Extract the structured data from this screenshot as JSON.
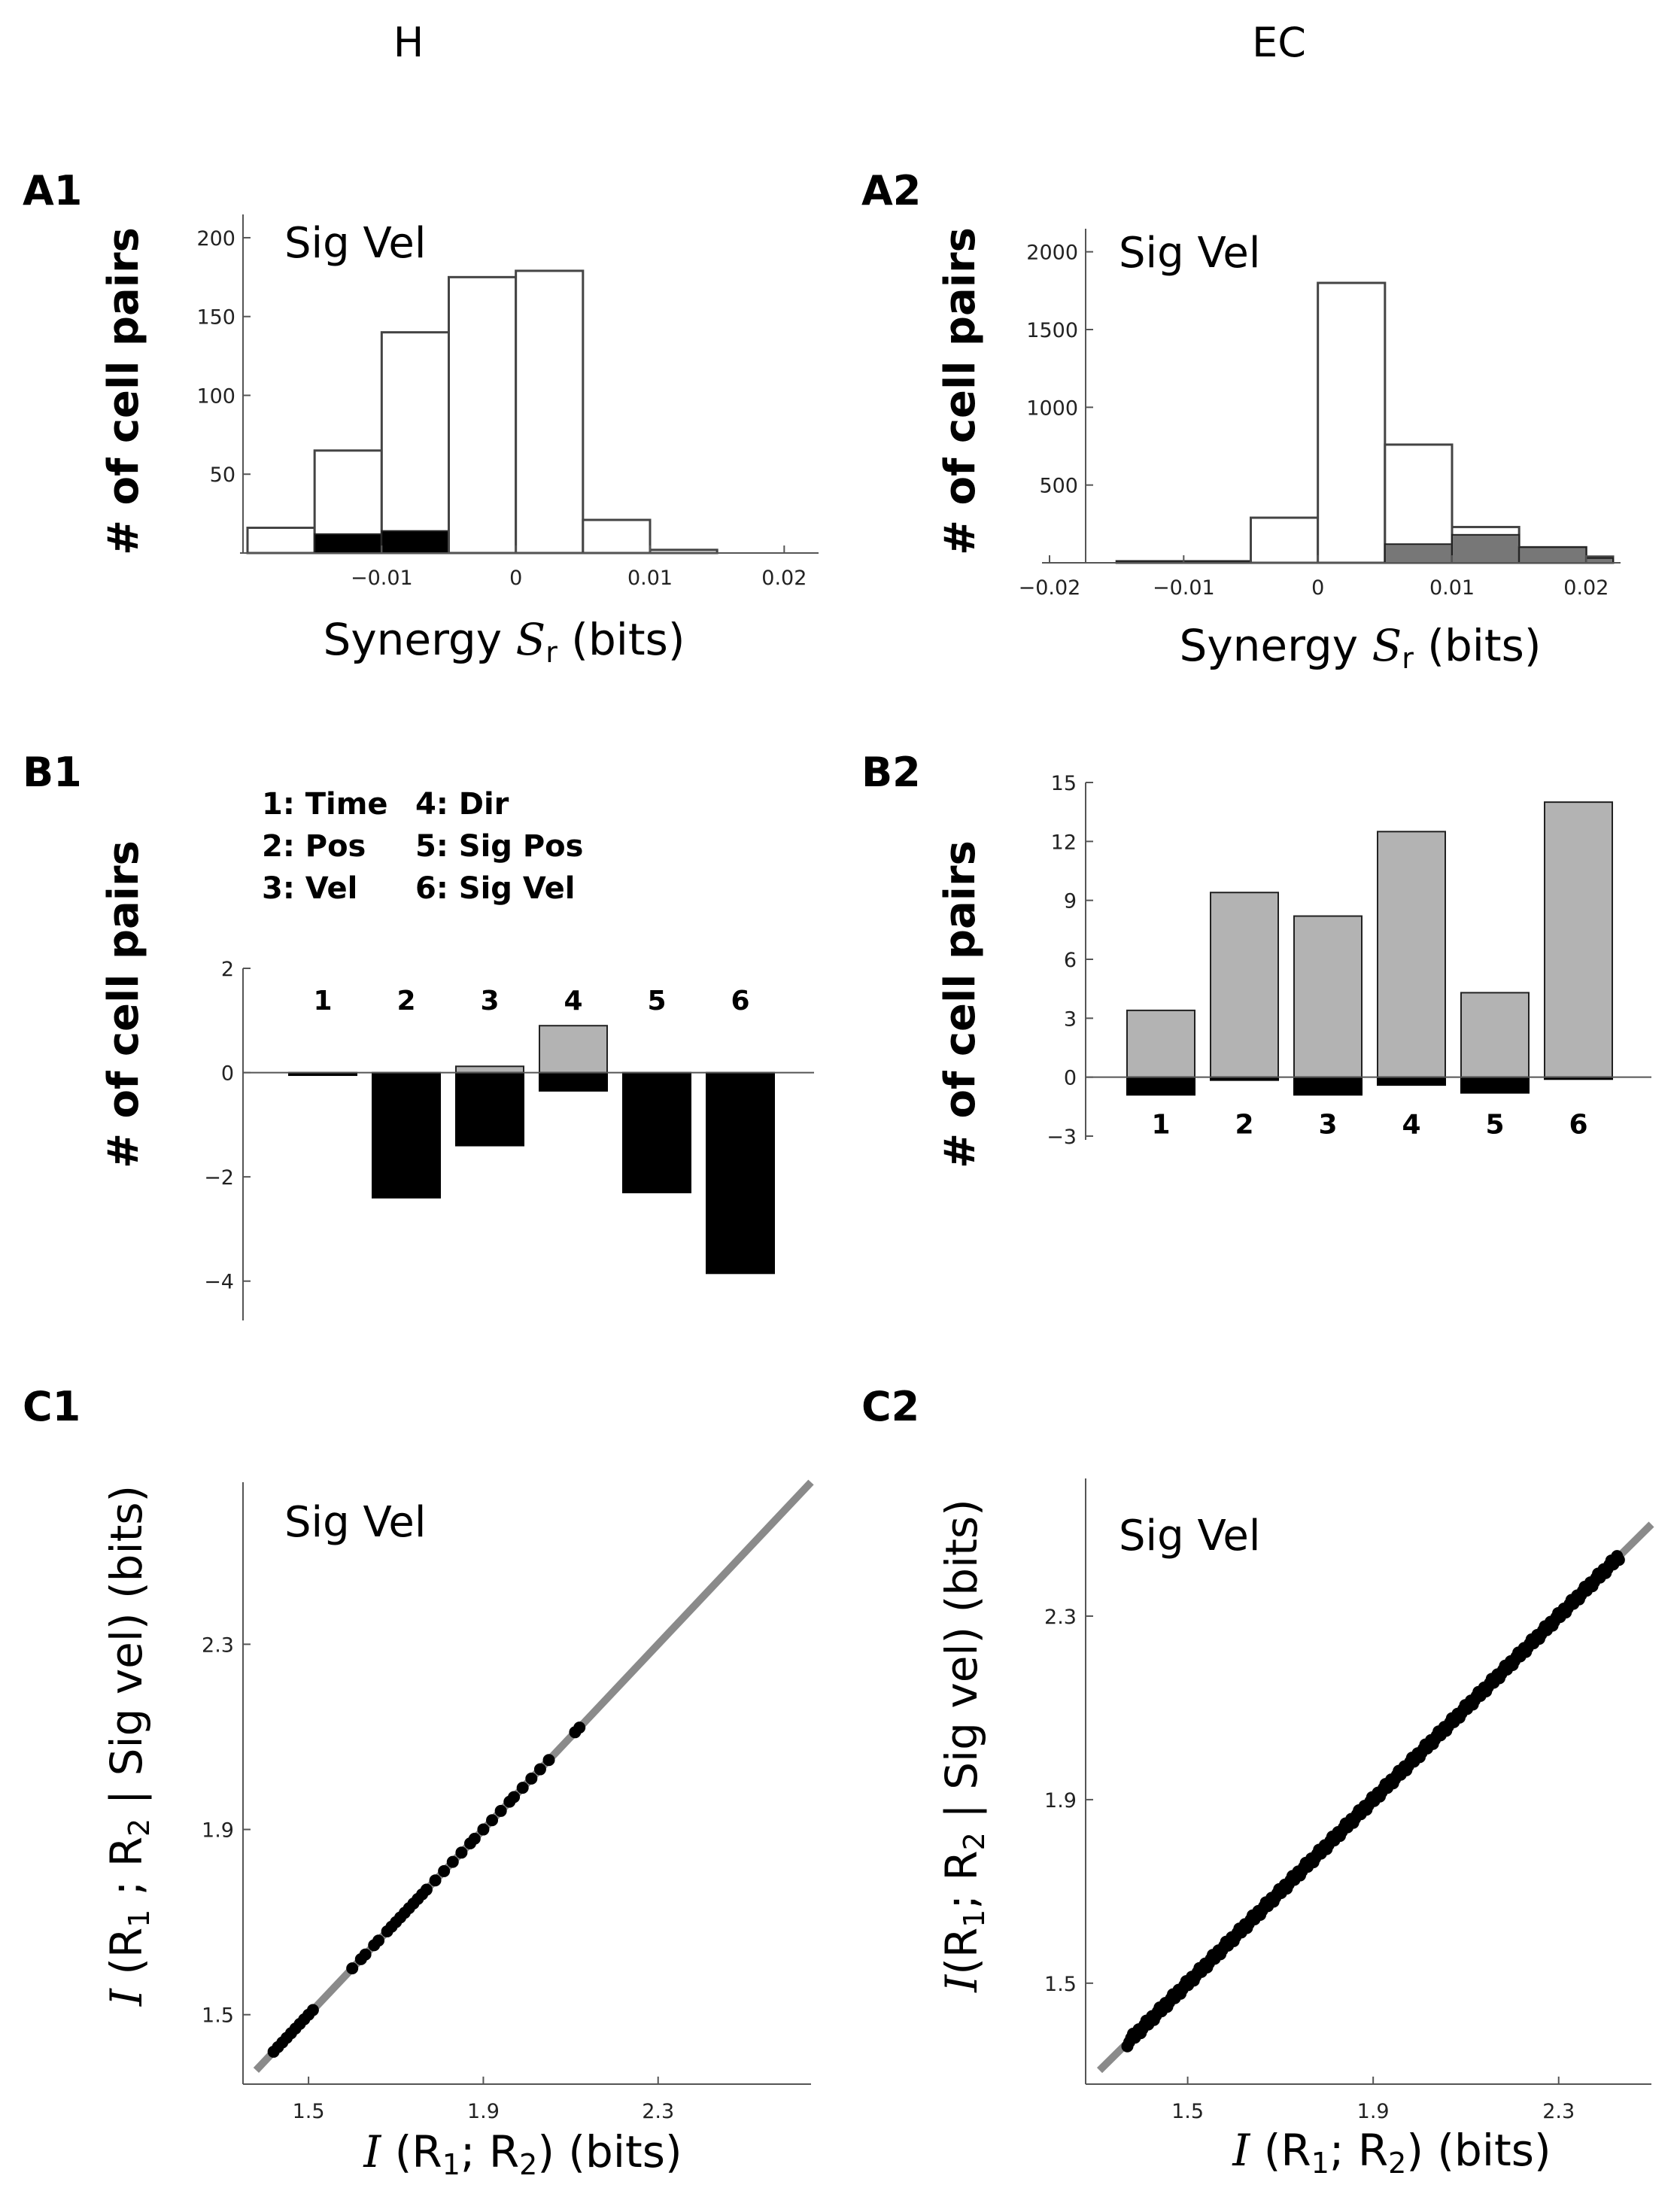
{
  "columns": {
    "left": "H",
    "right": "EC"
  },
  "panels": {
    "A1": "A1",
    "A2": "A2",
    "B1": "B1",
    "B2": "B2",
    "C1": "C1",
    "C2": "C2"
  },
  "chart_data": [
    {
      "id": "A1",
      "type": "bar",
      "title": "Sig Vel",
      "xlabel": "Synergy S_r (bits)",
      "xlabel_parts": {
        "a": "Synergy ",
        "b": "S",
        "c": "r",
        "d": " (bits)"
      },
      "ylabel": "# of cell pairs",
      "xlim": [
        -0.02,
        0.022
      ],
      "ylim": [
        0,
        210
      ],
      "xticks": [
        -0.01,
        0,
        0.01,
        0.02
      ],
      "xtick_labels": [
        "−0.01",
        "0",
        "0.01",
        "0.02"
      ],
      "yticks": [
        50,
        100,
        150,
        200
      ],
      "ytick_labels": [
        "50",
        "100",
        "150",
        "200"
      ],
      "bin_edges": [
        -0.02,
        -0.015,
        -0.01,
        -0.005,
        0,
        0.005,
        0.01,
        0.015
      ],
      "series": [
        {
          "name": "all pairs",
          "values": [
            16,
            65,
            140,
            175,
            179,
            21,
            2
          ]
        },
        {
          "name": "significant pairs",
          "values": [
            0,
            12,
            14,
            0,
            0,
            0,
            0
          ]
        }
      ]
    },
    {
      "id": "A2",
      "type": "bar",
      "title": "Sig Vel",
      "xlabel": "Synergy S_r (bits)",
      "xlabel_parts": {
        "a": "Synergy ",
        "b": "S",
        "c": "r",
        "d": " (bits)"
      },
      "ylabel": "# of cell pairs",
      "xlim": [
        -0.02,
        0.022
      ],
      "ylim": [
        0,
        2100
      ],
      "xticks": [
        -0.02,
        -0.01,
        0,
        0.01,
        0.02
      ],
      "xtick_labels": [
        "−0.02",
        "−0.01",
        "0",
        "0.01",
        "0.02"
      ],
      "yticks": [
        500,
        1000,
        1500,
        2000
      ],
      "ytick_labels": [
        "500",
        "1000",
        "1500",
        "2000"
      ],
      "bin_edges": [
        -0.015,
        -0.01,
        -0.005,
        0,
        0.005,
        0.01,
        0.015,
        0.02,
        0.022
      ],
      "series": [
        {
          "name": "all pairs",
          "values": [
            10,
            10,
            290,
            1800,
            760,
            230,
            100,
            40
          ]
        },
        {
          "name": "significant pairs",
          "values": [
            10,
            10,
            0,
            0,
            120,
            180,
            100,
            30
          ]
        }
      ]
    },
    {
      "id": "B1",
      "type": "bar",
      "ylabel": "# of cell pairs",
      "legend": [
        "1: Time",
        "2: Pos",
        "3: Vel",
        "4: Dir",
        "5: Sig Pos",
        "6: Sig Vel"
      ],
      "categories": [
        "1",
        "2",
        "3",
        "4",
        "5",
        "6"
      ],
      "ylim": [
        -5,
        2
      ],
      "yticks": [
        -4,
        -2,
        0,
        2
      ],
      "ytick_labels": [
        "−4",
        "−2",
        "0",
        "2"
      ],
      "series": [
        {
          "name": "positive",
          "values": [
            0,
            0,
            0.12,
            0.9,
            0,
            0
          ]
        },
        {
          "name": "negative",
          "values": [
            -0.05,
            -2.4,
            -1.4,
            -0.35,
            -2.3,
            -3.85
          ]
        }
      ]
    },
    {
      "id": "B2",
      "type": "bar",
      "ylabel": "# of cell pairs",
      "categories": [
        "1",
        "2",
        "3",
        "4",
        "5",
        "6"
      ],
      "ylim": [
        -3,
        15
      ],
      "yticks": [
        -3,
        0,
        3,
        6,
        9,
        12,
        15
      ],
      "ytick_labels": [
        "−3",
        "0",
        "3",
        "6",
        "9",
        "12",
        "15"
      ],
      "series": [
        {
          "name": "positive",
          "values": [
            3.4,
            9.4,
            8.2,
            12.5,
            4.3,
            14
          ]
        },
        {
          "name": "negative",
          "values": [
            -0.9,
            -0.15,
            -0.9,
            -0.4,
            -0.8,
            -0.1
          ]
        }
      ]
    },
    {
      "id": "C1",
      "type": "scatter",
      "title": "Sig Vel",
      "xlabel_parts": {
        "a": "I",
        "b": " (R",
        "c": "1",
        "d": "; R",
        "e": "2",
        "f": ") (bits)"
      },
      "ylabel_parts": {
        "a": "I",
        "b": " (R",
        "c": "1",
        "d": " ; R",
        "e": "2",
        "f": " | Sig vel) (bits)"
      },
      "xlim": [
        1.35,
        2.65
      ],
      "ylim": [
        1.35,
        2.65
      ],
      "xticks": [
        1.5,
        1.9,
        2.3
      ],
      "xtick_labels": [
        "1.5",
        "1.9",
        "2.3"
      ],
      "yticks": [
        1.5,
        1.9,
        2.3
      ],
      "ytick_labels": [
        "1.5",
        "1.9",
        "2.3"
      ],
      "diagonal": true,
      "points": [
        [
          1.42,
          1.42
        ],
        [
          1.43,
          1.43
        ],
        [
          1.44,
          1.44
        ],
        [
          1.45,
          1.45
        ],
        [
          1.46,
          1.46
        ],
        [
          1.47,
          1.47
        ],
        [
          1.48,
          1.48
        ],
        [
          1.49,
          1.49
        ],
        [
          1.5,
          1.5
        ],
        [
          1.51,
          1.51
        ],
        [
          1.6,
          1.6
        ],
        [
          1.62,
          1.62
        ],
        [
          1.63,
          1.63
        ],
        [
          1.65,
          1.65
        ],
        [
          1.66,
          1.66
        ],
        [
          1.68,
          1.68
        ],
        [
          1.69,
          1.69
        ],
        [
          1.7,
          1.7
        ],
        [
          1.71,
          1.71
        ],
        [
          1.72,
          1.72
        ],
        [
          1.73,
          1.73
        ],
        [
          1.74,
          1.74
        ],
        [
          1.75,
          1.75
        ],
        [
          1.76,
          1.76
        ],
        [
          1.77,
          1.77
        ],
        [
          1.79,
          1.79
        ],
        [
          1.81,
          1.81
        ],
        [
          1.83,
          1.83
        ],
        [
          1.85,
          1.85
        ],
        [
          1.87,
          1.87
        ],
        [
          1.88,
          1.88
        ],
        [
          1.9,
          1.9
        ],
        [
          1.92,
          1.92
        ],
        [
          1.94,
          1.94
        ],
        [
          1.96,
          1.96
        ],
        [
          1.97,
          1.97
        ],
        [
          1.99,
          1.99
        ],
        [
          2.01,
          2.01
        ],
        [
          2.03,
          2.03
        ],
        [
          2.05,
          2.05
        ],
        [
          2.11,
          2.11
        ],
        [
          2.12,
          2.12
        ]
      ]
    },
    {
      "id": "C2",
      "type": "scatter",
      "title": "Sig Vel",
      "xlabel_parts": {
        "a": "I",
        "b": " (R",
        "c": "1",
        "d": "; R",
        "e": "2",
        "f": ") (bits)"
      },
      "ylabel_parts": {
        "a": "I",
        "b": "(R",
        "c": "1",
        "d": "; R",
        "e": "2",
        "f": " | Sig vel) (bits)"
      },
      "xlim": [
        1.28,
        2.5
      ],
      "ylim": [
        1.28,
        2.6
      ],
      "xticks": [
        1.5,
        1.9,
        2.3
      ],
      "xtick_labels": [
        "1.5",
        "1.9",
        "2.3"
      ],
      "yticks": [
        1.5,
        1.9,
        2.3
      ],
      "ytick_labels": [
        "1.5",
        "1.9",
        "2.3"
      ],
      "diagonal": true,
      "dense_range": [
        1.37,
        2.43
      ],
      "dense_count": 260
    }
  ]
}
